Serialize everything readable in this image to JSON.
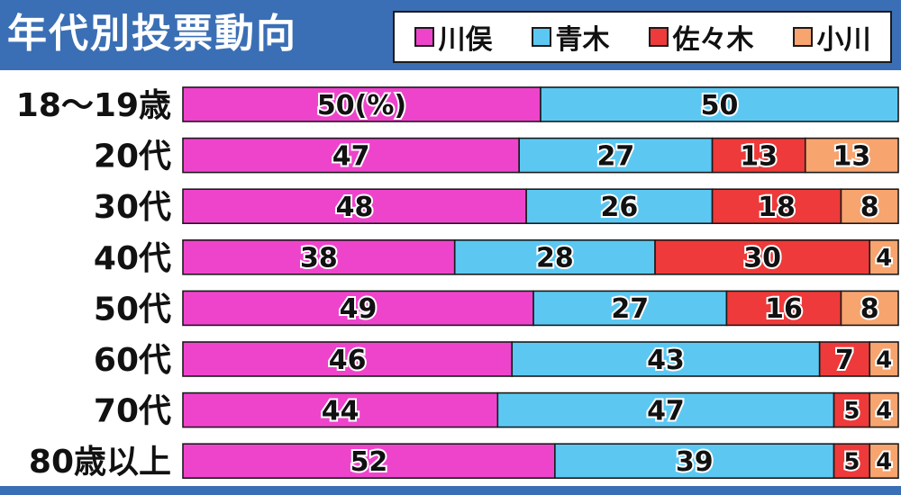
{
  "title": "年代別投票動向",
  "legend": [
    {
      "label": "川俣",
      "color": "#ee44cc"
    },
    {
      "label": "青木",
      "color": "#5cc8f2"
    },
    {
      "label": "佐々木",
      "color": "#ee3a3a"
    },
    {
      "label": "小川",
      "color": "#f7a46e"
    }
  ],
  "chart_data": {
    "type": "bar",
    "orientation": "horizontal",
    "stacked": true,
    "title": "年代別投票動向",
    "unit_label": "(%)",
    "categories": [
      "18～19歳",
      "20代",
      "30代",
      "40代",
      "50代",
      "60代",
      "70代",
      "80歳以上"
    ],
    "series": [
      {
        "name": "川俣",
        "color": "#ee44cc",
        "values": [
          50,
          47,
          48,
          38,
          49,
          46,
          44,
          52
        ]
      },
      {
        "name": "青木",
        "color": "#5cc8f2",
        "values": [
          50,
          27,
          26,
          28,
          27,
          43,
          47,
          39
        ]
      },
      {
        "name": "佐々木",
        "color": "#ee3a3a",
        "values": [
          0,
          13,
          18,
          30,
          16,
          7,
          5,
          5
        ]
      },
      {
        "name": "小川",
        "color": "#f7a46e",
        "values": [
          0,
          13,
          8,
          4,
          8,
          4,
          4,
          4
        ]
      }
    ],
    "xlim": [
      0,
      100
    ],
    "legend_position": "top-right",
    "grid": false
  }
}
